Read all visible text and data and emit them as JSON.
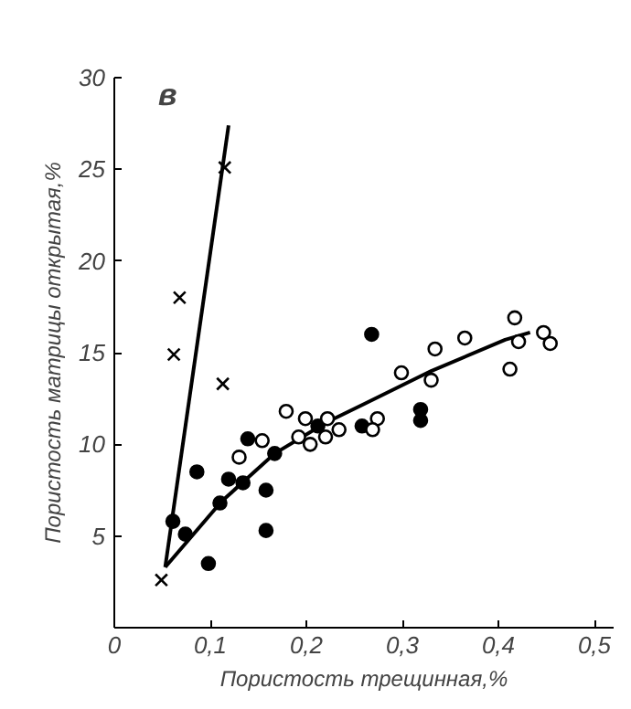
{
  "chart_data": {
    "type": "scatter",
    "xlabel": "Пористость трещинная,%",
    "ylabel": "Пористость матрицы открытая,%",
    "annotations": [
      "в"
    ],
    "xlim": [
      0,
      0.52
    ],
    "ylim": [
      0,
      30
    ],
    "xticks": [
      {
        "value": 0,
        "label": "0"
      },
      {
        "value": 0.1,
        "label": "0,1"
      },
      {
        "value": 0.2,
        "label": "0,2"
      },
      {
        "value": 0.3,
        "label": "0,3"
      },
      {
        "value": 0.4,
        "label": "0,4"
      },
      {
        "value": 0.5,
        "label": "0,5"
      }
    ],
    "yticks": [
      5,
      10,
      15,
      20,
      25,
      30
    ],
    "grid": false,
    "series": [
      {
        "type": "line",
        "color": "#000000",
        "x": [
          0.053,
          0.119
        ],
        "values": [
          3.3,
          27.4
        ]
      },
      {
        "type": "line",
        "color": "#000000",
        "x": [
          0.053,
          0.112,
          0.167,
          0.221,
          0.26,
          0.33,
          0.407,
          0.433
        ],
        "values": [
          3.3,
          6.9,
          9.5,
          11.2,
          12.2,
          14.0,
          15.7,
          16.1
        ]
      },
      {
        "marker": "cross",
        "color": "#000000",
        "x": [
          0.049,
          0.062,
          0.068,
          0.113,
          0.115
        ],
        "values": [
          2.6,
          14.9,
          18.0,
          13.3,
          25.1
        ]
      },
      {
        "marker": "circle",
        "color": "#000000",
        "x": [
          0.061,
          0.074,
          0.086,
          0.098,
          0.11,
          0.119,
          0.134,
          0.139,
          0.167,
          0.158,
          0.158,
          0.212,
          0.258,
          0.268,
          0.319,
          0.319
        ],
        "values": [
          5.8,
          5.1,
          8.5,
          3.5,
          6.8,
          8.1,
          7.9,
          10.3,
          9.5,
          7.5,
          5.3,
          11.0,
          11.0,
          16.0,
          11.9,
          11.3
        ]
      },
      {
        "marker": "circle",
        "color": "#ffffff",
        "x": [
          0.13,
          0.154,
          0.179,
          0.192,
          0.199,
          0.204,
          0.22,
          0.222,
          0.234,
          0.274,
          0.269,
          0.299,
          0.33,
          0.334,
          0.365,
          0.417,
          0.421,
          0.412,
          0.447,
          0.454
        ],
        "values": [
          9.3,
          10.2,
          11.8,
          10.4,
          11.4,
          10.0,
          10.4,
          11.4,
          10.8,
          11.4,
          10.8,
          13.9,
          13.5,
          15.2,
          15.8,
          16.9,
          15.6,
          14.1,
          16.1,
          15.5
        ]
      }
    ]
  }
}
